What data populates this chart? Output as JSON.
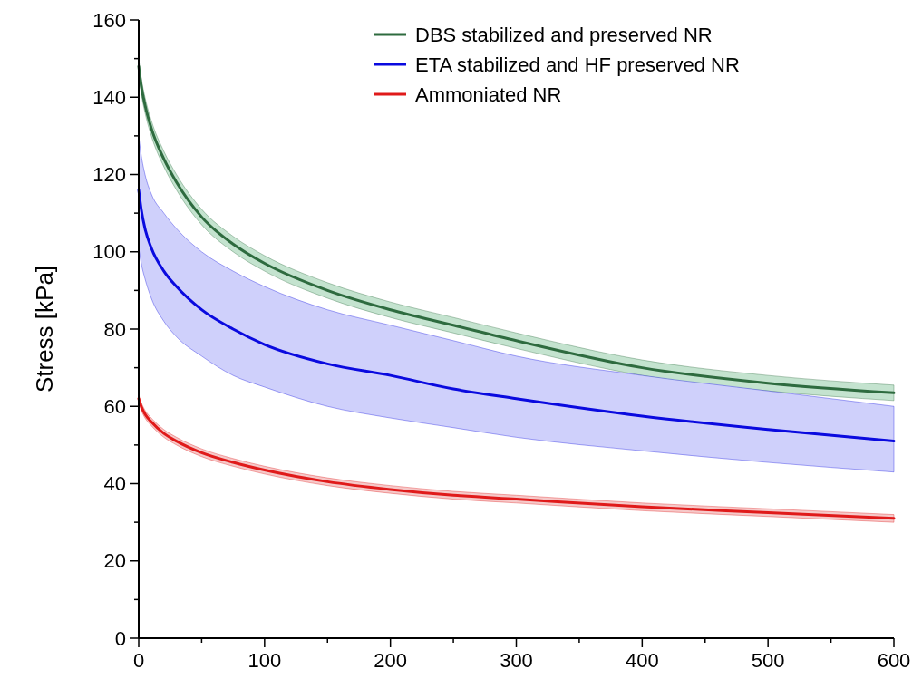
{
  "chart_data": {
    "type": "line",
    "ylabel": "Stress [kPa]",
    "xlim": [
      0,
      600
    ],
    "ylim": [
      0,
      160
    ],
    "xticks": [
      0,
      {
        "value": 50,
        "label": null
      },
      100,
      {
        "value": 150,
        "label": null
      },
      200,
      {
        "value": 250,
        "label": null
      },
      300,
      {
        "value": 350,
        "label": null
      },
      400,
      {
        "value": 450,
        "label": null
      },
      500,
      {
        "value": 550,
        "label": null
      },
      600
    ],
    "yticks": [
      0,
      {
        "value": 10,
        "label": null
      },
      20,
      {
        "value": 30,
        "label": null
      },
      40,
      {
        "value": 50,
        "label": null
      },
      60,
      {
        "value": 70,
        "label": null
      },
      80,
      {
        "value": 90,
        "label": null
      },
      100,
      {
        "value": 110,
        "label": null
      },
      120,
      {
        "value": 130,
        "label": null
      },
      140,
      {
        "value": 150,
        "label": null
      },
      160
    ],
    "x": [
      0,
      2,
      5,
      10,
      20,
      30,
      50,
      75,
      100,
      150,
      200,
      250,
      300,
      400,
      500,
      600
    ],
    "series": [
      {
        "name": "DBS stabilized and preserved NR",
        "color": "#2e6b3f",
        "values": [
          148,
          143,
          138,
          132,
          124,
          118,
          109,
          102,
          97,
          90,
          85,
          81,
          77,
          70,
          66,
          63.5
        ],
        "upper": [
          150,
          145,
          140,
          134,
          126,
          120,
          111,
          104,
          99,
          92,
          87,
          83,
          79,
          72,
          68,
          65.5
        ],
        "lower": [
          146,
          141,
          136,
          130,
          122,
          116,
          107,
          100,
          95,
          88,
          83,
          79,
          75,
          68,
          64,
          61.5
        ]
      },
      {
        "name": "ETA stabilized and HF preserved NR",
        "color": "#0a0adf",
        "values": [
          116,
          111,
          106,
          101,
          95,
          91,
          85,
          80,
          76,
          71,
          68,
          64.5,
          62,
          57.5,
          54,
          51
        ],
        "upper": [
          130,
          125,
          120,
          115,
          110,
          106,
          100,
          95,
          91,
          85,
          81,
          77,
          73,
          68,
          64,
          60
        ],
        "lower": [
          101,
          97,
          93,
          88,
          82,
          78,
          73,
          68,
          65,
          60,
          57,
          54.5,
          52,
          48.5,
          45.5,
          43
        ]
      },
      {
        "name": "Ammoniated NR",
        "color": "#e01a1a",
        "values": [
          62,
          60,
          58,
          56,
          53,
          51,
          48,
          45.5,
          43.5,
          40.5,
          38.5,
          37,
          36,
          34,
          32.5,
          31
        ],
        "upper": [
          63,
          61,
          59,
          57,
          54,
          52,
          49,
          46.5,
          44.5,
          41.5,
          39.5,
          38,
          37,
          35,
          33.5,
          32
        ],
        "lower": [
          61,
          59,
          57,
          55,
          52,
          50,
          47,
          44.5,
          42.5,
          39.5,
          37.5,
          36,
          35,
          33,
          31.5,
          30
        ]
      }
    ],
    "legend": "top right",
    "marker": "none",
    "line_style": "solid",
    "grid": false
  }
}
